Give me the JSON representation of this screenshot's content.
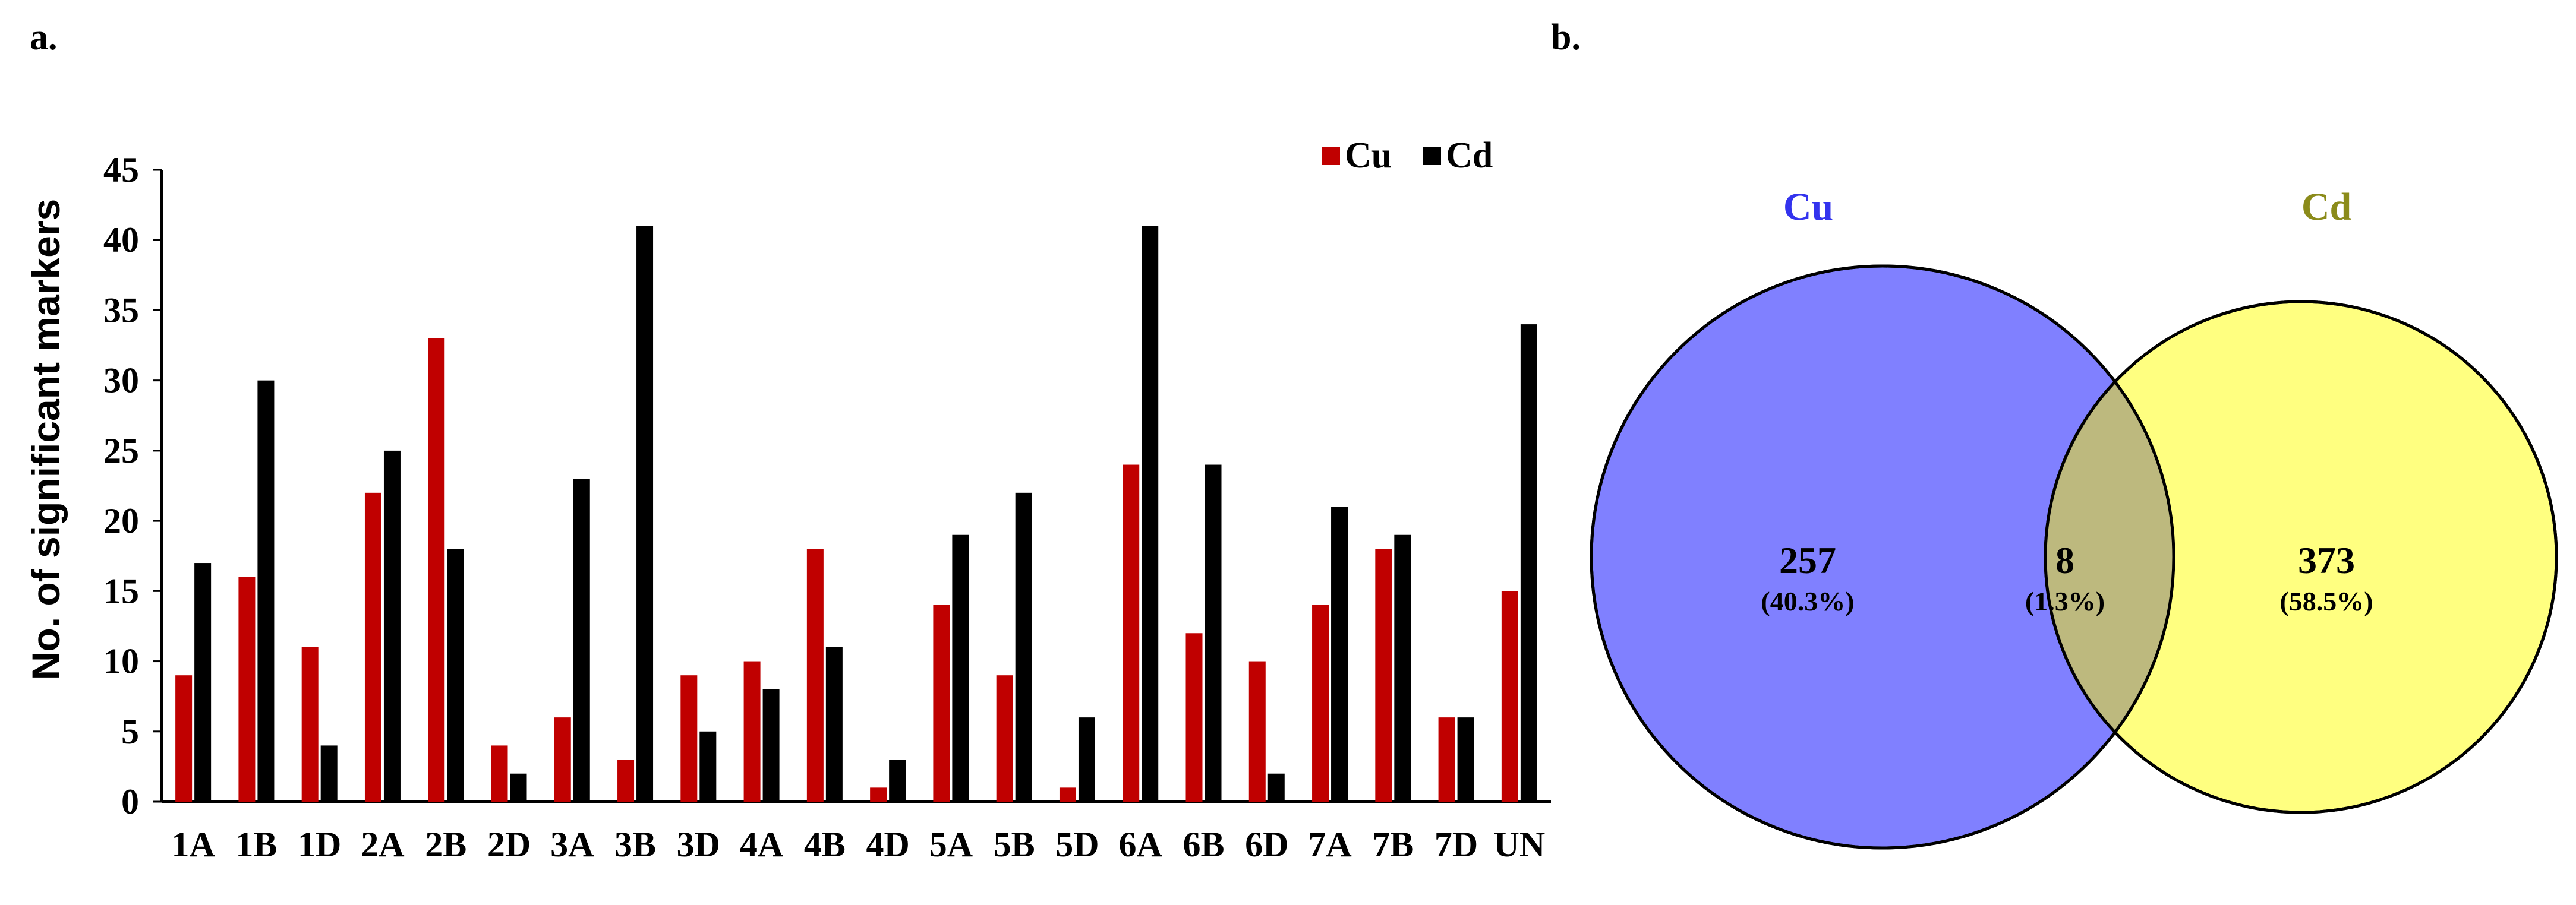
{
  "panels": {
    "a": "a.",
    "b": "b."
  },
  "chart_data": {
    "type": "bar",
    "title": "",
    "xlabel": "",
    "ylabel": "No. of significant markers",
    "ylim": [
      0,
      45
    ],
    "yticks": [
      0,
      5,
      10,
      15,
      20,
      25,
      30,
      35,
      40,
      45
    ],
    "grid": false,
    "legend_position": "top-right",
    "categories": [
      "1A",
      "1B",
      "1D",
      "2A",
      "2B",
      "2D",
      "3A",
      "3B",
      "3D",
      "4A",
      "4B",
      "4D",
      "5A",
      "5B",
      "5D",
      "6A",
      "6B",
      "6D",
      "7A",
      "7B",
      "7D",
      "UN"
    ],
    "series": [
      {
        "name": "Cu",
        "color": "#c00000",
        "values": [
          9,
          16,
          11,
          22,
          33,
          4,
          6,
          3,
          9,
          10,
          18,
          1,
          14,
          9,
          1,
          24,
          12,
          10,
          14,
          18,
          6,
          15
        ]
      },
      {
        "name": "Cd",
        "color": "#000000",
        "values": [
          17,
          30,
          4,
          25,
          18,
          2,
          23,
          41,
          5,
          8,
          11,
          3,
          19,
          22,
          6,
          41,
          24,
          2,
          21,
          19,
          6,
          34
        ]
      }
    ]
  },
  "venn": {
    "left": {
      "name": "Cu",
      "count": "257",
      "percent": "(40.3%)",
      "fill": "#8080ff",
      "title_color": "#3333ee"
    },
    "right": {
      "name": "Cd",
      "count": "373",
      "percent": "(58.5%)",
      "fill": "#ffff80",
      "title_color": "#8b8b1a"
    },
    "overlap": {
      "count": "8",
      "percent": "(1.3%)",
      "fill": "#bdb97e"
    }
  }
}
